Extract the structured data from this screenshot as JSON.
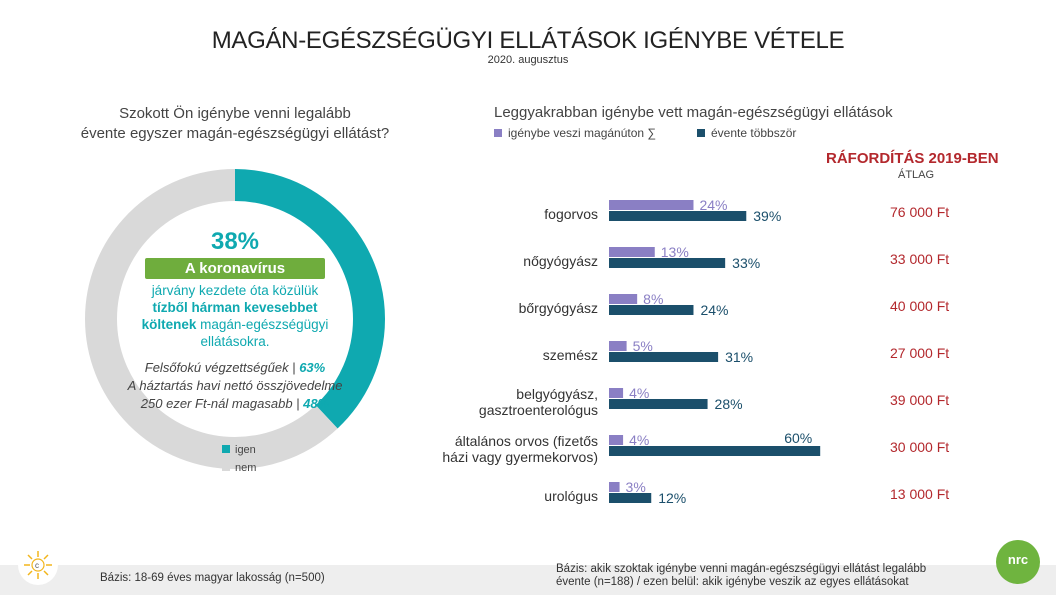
{
  "header": {
    "title": "MAGÁN-EGÉSZSÉGÜGYI ELLÁTÁSOK IGÉNYBE VÉTELE",
    "subtitle": "2020. augusztus"
  },
  "left_panel": {
    "question_line1": "Szokott Ön igénybe venni legalább",
    "question_line2": "évente egyszer magán-egészségügyi ellátást?",
    "big_pct": "38%",
    "highlight": "A koronavírus",
    "text_line1": "járvány kezdete óta közülük",
    "text_bold1": "tízből hárman kevesebbet",
    "text_bold2": "költenek",
    "text_line2": " magán-egészségügyi",
    "text_line3": "ellátásokra.",
    "note1_label": "Felsőfokú végzettségűek |",
    "note1_value": "63%",
    "note2_line1": "A háztartás havi nettó összjövedelme",
    "note2_label": "250 ezer Ft-nál magasabb  |",
    "note2_value": "48%",
    "legend": [
      {
        "label": "igen",
        "color": "#0fa9b0"
      },
      {
        "label": "nem",
        "color": "#d9d9d9"
      }
    ]
  },
  "right_panel": {
    "title": "Leggyakrabban igénybe vett magán-egészségügyi ellátások",
    "legend": [
      {
        "label": "igénybe veszi magánúton ∑",
        "color": "#8a7fc4"
      },
      {
        "label": "évente többször",
        "color": "#1b4f6b"
      }
    ],
    "spend_title": "RÁFORDÍTÁS 2019-BEN",
    "spend_sub": "ÁTLAG"
  },
  "chart_data": [
    {
      "type": "pie",
      "title": "Szokott Ön igénybe venni legalább évente egyszer magán-egészségügyi ellátást?",
      "labels": [
        "igen",
        "nem"
      ],
      "values": [
        38,
        62
      ],
      "colors": [
        "#0fa9b0",
        "#d9d9d9"
      ]
    },
    {
      "type": "bar",
      "orientation": "horizontal",
      "title": "Leggyakrabban igénybe vett magán-egészségügyi ellátások",
      "categories": [
        [
          "fogorvos"
        ],
        [
          "nőgyógyász"
        ],
        [
          "bőrgyógyász"
        ],
        [
          "szemész"
        ],
        [
          "belgyógyász,",
          "gasztroenterológus"
        ],
        [
          "általános orvos (fizetős",
          "házi vagy gyermekorvos)"
        ],
        [
          "urológus"
        ]
      ],
      "series": [
        {
          "name": "igénybe veszi magánúton ∑",
          "color": "#8a7fc4",
          "values": [
            24,
            13,
            8,
            5,
            4,
            4,
            3
          ],
          "labels": [
            "24%",
            "13%",
            "8%",
            "5%",
            "4%",
            "4%",
            "3%"
          ]
        },
        {
          "name": "évente többször",
          "color": "#1b4f6b",
          "values": [
            39,
            33,
            24,
            31,
            28,
            60,
            12
          ],
          "labels": [
            "39%",
            "33%",
            "24%",
            "31%",
            "28%",
            "60%",
            "12%"
          ]
        }
      ],
      "xlim": [
        0,
        60
      ],
      "spending": [
        "76 000 Ft",
        "33 000 Ft",
        "40 000 Ft",
        "27 000 Ft",
        "39 000 Ft",
        "30 000 Ft",
        "13 000 Ft"
      ]
    }
  ],
  "footer": {
    "left": "Bázis: 18-69 éves magyar lakosság (n=500)",
    "right_line1": "Bázis: akik szoktak igénybe venni magán-egészségügyi ellátást legalább",
    "right_line2": "évente (n=188) / ezen belül: akik igénybe veszik az egyes ellátásokat",
    "logo_right": "nrc"
  }
}
